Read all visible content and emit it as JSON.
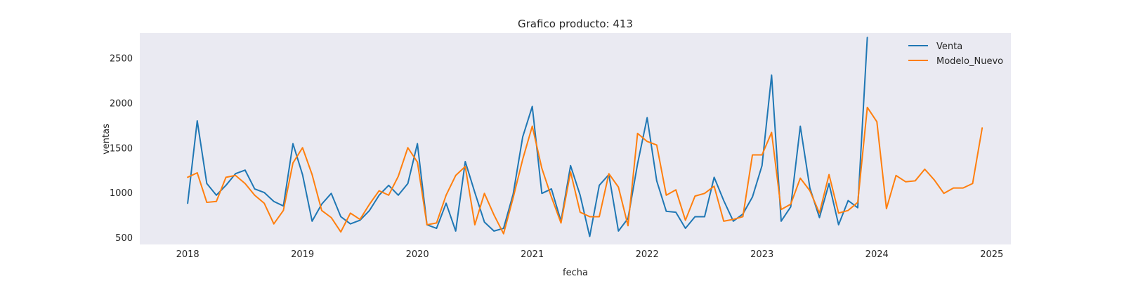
{
  "chart_data": {
    "type": "line",
    "title": "Grafico producto: 413",
    "xlabel": "fecha",
    "ylabel": "ventas",
    "xlim": [
      "2017-08-01",
      "2025-03-01"
    ],
    "ylim": [
      420,
      2780
    ],
    "x_ticks": [
      "2018",
      "2019",
      "2020",
      "2021",
      "2022",
      "2023",
      "2024",
      "2025"
    ],
    "y_ticks": [
      500,
      1000,
      1500,
      2000,
      2500
    ],
    "grid": false,
    "legend_position": "top-right",
    "x_start": "2018-01",
    "series": [
      {
        "name": "Venta",
        "color": "#1f77b4",
        "values": [
          880,
          1800,
          1100,
          970,
          1080,
          1210,
          1250,
          1040,
          1000,
          900,
          850,
          1545,
          1200,
          680,
          870,
          990,
          730,
          650,
          690,
          800,
          970,
          1080,
          970,
          1100,
          1545,
          640,
          600,
          880,
          570,
          1345,
          1000,
          670,
          570,
          600,
          980,
          1620,
          1960,
          990,
          1040,
          680,
          1300,
          970,
          510,
          1080,
          1200,
          570,
          710,
          1320,
          1835,
          1130,
          790,
          780,
          600,
          730,
          730,
          1170,
          910,
          680,
          760,
          950,
          1300,
          2310,
          680,
          840,
          1740,
          1050,
          720,
          1100,
          640,
          910,
          830,
          2730
        ]
      },
      {
        "name": "Modelo_Nuevo",
        "color": "#ff7f0e",
        "values": [
          1170,
          1220,
          890,
          900,
          1170,
          1190,
          1100,
          970,
          880,
          650,
          800,
          1330,
          1500,
          1200,
          800,
          720,
          560,
          770,
          700,
          870,
          1020,
          970,
          1180,
          1500,
          1340,
          640,
          660,
          970,
          1190,
          1290,
          640,
          990,
          750,
          540,
          940,
          1370,
          1740,
          1270,
          950,
          660,
          1230,
          780,
          730,
          730,
          1210,
          1060,
          630,
          1660,
          1570,
          1530,
          970,
          1030,
          690,
          960,
          990,
          1070,
          680,
          700,
          730,
          1420,
          1420,
          1670,
          810,
          870,
          1160,
          1020,
          770,
          1200,
          770,
          800,
          890,
          1950,
          1790,
          820,
          1190,
          1120,
          1130,
          1260,
          1140,
          990,
          1050,
          1050,
          1100,
          1720
        ]
      }
    ]
  }
}
